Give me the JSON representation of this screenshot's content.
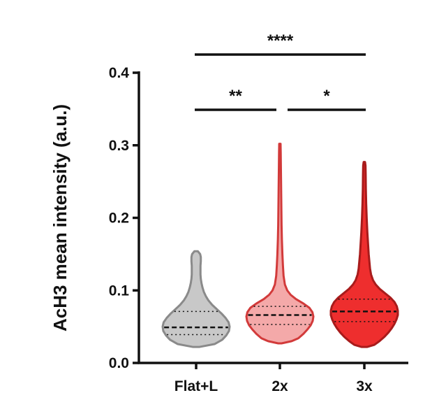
{
  "chart_data": {
    "type": "violin",
    "title": "",
    "ylabel": "AcH3 mean intensity (a.u.)",
    "xlabel": "",
    "ylim": [
      0.0,
      0.4
    ],
    "yticks": [
      0.0,
      0.1,
      0.2,
      0.3,
      0.4
    ],
    "ytick_labels": [
      "0.0",
      "0.1",
      "0.2",
      "0.3",
      "0.4"
    ],
    "categories": [
      "Flat+L",
      "2x",
      "3x"
    ],
    "series": [
      {
        "category": "Flat+L",
        "fill": "#c8c8c8",
        "stroke": "#8a8a8a",
        "min": 0.022,
        "max": 0.154,
        "q1": 0.039,
        "median": 0.049,
        "q3": 0.071,
        "density": [
          [
            0.022,
            0.09
          ],
          [
            0.026,
            0.55
          ],
          [
            0.032,
            0.78
          ],
          [
            0.038,
            0.9
          ],
          [
            0.044,
            0.98
          ],
          [
            0.05,
            1.0
          ],
          [
            0.056,
            0.97
          ],
          [
            0.062,
            0.88
          ],
          [
            0.068,
            0.76
          ],
          [
            0.074,
            0.62
          ],
          [
            0.08,
            0.48
          ],
          [
            0.086,
            0.37
          ],
          [
            0.092,
            0.29
          ],
          [
            0.098,
            0.23
          ],
          [
            0.104,
            0.19
          ],
          [
            0.11,
            0.16
          ],
          [
            0.116,
            0.14
          ],
          [
            0.122,
            0.13
          ],
          [
            0.128,
            0.13
          ],
          [
            0.134,
            0.13
          ],
          [
            0.14,
            0.14
          ],
          [
            0.146,
            0.14
          ],
          [
            0.15,
            0.12
          ],
          [
            0.154,
            0.05
          ]
        ]
      },
      {
        "category": "2x",
        "fill": "#f4a9a9",
        "stroke": "#d23a3a",
        "min": 0.027,
        "max": 0.302,
        "q1": 0.053,
        "median": 0.066,
        "q3": 0.078,
        "density": [
          [
            0.027,
            0.05
          ],
          [
            0.03,
            0.35
          ],
          [
            0.034,
            0.55
          ],
          [
            0.04,
            0.7
          ],
          [
            0.046,
            0.82
          ],
          [
            0.052,
            0.92
          ],
          [
            0.058,
            0.98
          ],
          [
            0.064,
            1.0
          ],
          [
            0.07,
            0.97
          ],
          [
            0.076,
            0.88
          ],
          [
            0.082,
            0.7
          ],
          [
            0.088,
            0.48
          ],
          [
            0.094,
            0.32
          ],
          [
            0.1,
            0.22
          ],
          [
            0.108,
            0.15
          ],
          [
            0.12,
            0.11
          ],
          [
            0.135,
            0.09
          ],
          [
            0.15,
            0.075
          ],
          [
            0.17,
            0.06
          ],
          [
            0.19,
            0.05
          ],
          [
            0.21,
            0.045
          ],
          [
            0.23,
            0.04
          ],
          [
            0.25,
            0.035
          ],
          [
            0.27,
            0.03
          ],
          [
            0.29,
            0.025
          ],
          [
            0.302,
            0.02
          ]
        ]
      },
      {
        "category": "3x",
        "fill": "#ee2e2e",
        "stroke": "#a81b1b",
        "min": 0.022,
        "max": 0.277,
        "q1": 0.057,
        "median": 0.071,
        "q3": 0.088,
        "density": [
          [
            0.022,
            0.08
          ],
          [
            0.025,
            0.3
          ],
          [
            0.03,
            0.45
          ],
          [
            0.036,
            0.6
          ],
          [
            0.042,
            0.72
          ],
          [
            0.048,
            0.82
          ],
          [
            0.054,
            0.9
          ],
          [
            0.06,
            0.96
          ],
          [
            0.066,
            1.0
          ],
          [
            0.072,
            1.0
          ],
          [
            0.078,
            0.97
          ],
          [
            0.084,
            0.9
          ],
          [
            0.09,
            0.78
          ],
          [
            0.096,
            0.62
          ],
          [
            0.102,
            0.46
          ],
          [
            0.108,
            0.34
          ],
          [
            0.114,
            0.26
          ],
          [
            0.122,
            0.2
          ],
          [
            0.13,
            0.17
          ],
          [
            0.14,
            0.15
          ],
          [
            0.15,
            0.13
          ],
          [
            0.165,
            0.11
          ],
          [
            0.18,
            0.09
          ],
          [
            0.2,
            0.07
          ],
          [
            0.22,
            0.055
          ],
          [
            0.24,
            0.045
          ],
          [
            0.26,
            0.04
          ],
          [
            0.272,
            0.035
          ],
          [
            0.277,
            0.02
          ]
        ]
      }
    ],
    "significance": [
      {
        "from": "Flat+L",
        "to": "3x",
        "label": "****",
        "level": 3
      },
      {
        "from": "Flat+L",
        "to": "2x",
        "label": "**",
        "level": 1
      },
      {
        "from": "2x",
        "to": "3x",
        "label": "*",
        "level": 1
      }
    ]
  }
}
